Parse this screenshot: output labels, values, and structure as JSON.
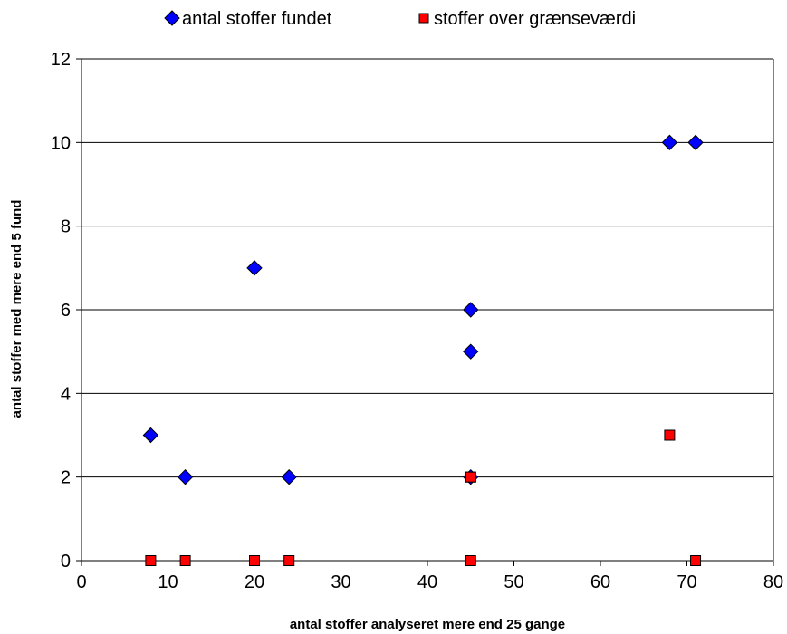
{
  "chart_data": {
    "type": "scatter",
    "title": "",
    "xlabel": "antal stoffer analyseret mere end 25 gange",
    "ylabel": "antal stoffer med mere end 5 fund",
    "xlim": [
      0,
      80
    ],
    "ylim": [
      0,
      12
    ],
    "x_ticks": [
      "0",
      "10",
      "20",
      "30",
      "40",
      "50",
      "60",
      "70",
      "80"
    ],
    "y_ticks": [
      "0",
      "2",
      "4",
      "6",
      "8",
      "10",
      "12"
    ],
    "grid": "horizontal",
    "legend_position": "top",
    "series": [
      {
        "name": "antal stoffer fundet",
        "marker": "diamond",
        "color": "#0000ff",
        "points": [
          {
            "x": 8,
            "y": 3
          },
          {
            "x": 12,
            "y": 2
          },
          {
            "x": 20,
            "y": 7
          },
          {
            "x": 24,
            "y": 2
          },
          {
            "x": 45,
            "y": 6
          },
          {
            "x": 45,
            "y": 5
          },
          {
            "x": 45,
            "y": 2
          },
          {
            "x": 68,
            "y": 10
          },
          {
            "x": 71,
            "y": 10
          }
        ]
      },
      {
        "name": "stoffer over grænseværdi",
        "marker": "square",
        "color": "#ff0000",
        "points": [
          {
            "x": 8,
            "y": 0
          },
          {
            "x": 12,
            "y": 0
          },
          {
            "x": 20,
            "y": 0
          },
          {
            "x": 24,
            "y": 0
          },
          {
            "x": 45,
            "y": 0
          },
          {
            "x": 45,
            "y": 2
          },
          {
            "x": 68,
            "y": 3
          },
          {
            "x": 71,
            "y": 0
          }
        ]
      }
    ]
  }
}
